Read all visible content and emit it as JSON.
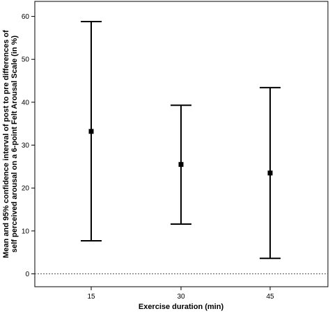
{
  "chart_data": {
    "type": "errorbar",
    "title": "",
    "xlabel": "Exercise duration (min)",
    "ylabel_line1": "Mean and 95% confidence interval of post to pre differences of",
    "ylabel_line2": "self perceived arousal on a 6-point Felt Arousal Scale (in %)",
    "categories": [
      "15",
      "30",
      "45"
    ],
    "means": [
      33.2,
      25.5,
      23.5
    ],
    "lower": [
      7.7,
      11.6,
      3.6
    ],
    "upper": [
      58.8,
      39.3,
      43.4
    ],
    "yticks": [
      0,
      10,
      20,
      30,
      40,
      50,
      60
    ],
    "ylim": [
      -3,
      63.5
    ],
    "reference_line": 0,
    "grid": false,
    "colors": {
      "marks": "#000000",
      "reference": "#555555"
    }
  }
}
